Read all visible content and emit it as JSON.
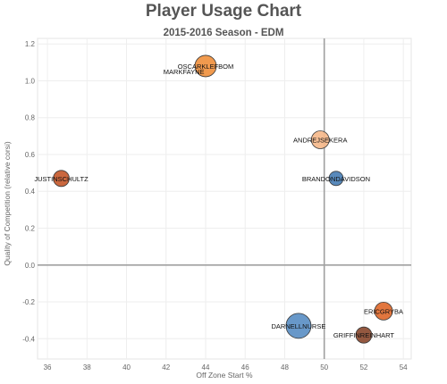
{
  "chart_data": {
    "type": "scatter",
    "title": "Player Usage Chart",
    "subtitle": "2015-2016 Season - EDM",
    "xlabel": "Off Zone Start %",
    "ylabel": "Quality of Competition (relative corsi)",
    "xlim": [
      35.5,
      54.4
    ],
    "ylim": [
      -0.51,
      1.23
    ],
    "xticks": [
      36,
      38,
      40,
      42,
      44,
      46,
      48,
      50,
      52,
      54
    ],
    "yticks": [
      -0.4,
      -0.2,
      0.0,
      0.2,
      0.4,
      0.6,
      0.8,
      1.0,
      1.2
    ],
    "ytick_labels": [
      "-0.4",
      "-0.2",
      "0.0",
      "0.2",
      "0.4",
      "0.6",
      "0.8",
      "1.0",
      "1.2"
    ],
    "reference_lines": {
      "x": 50,
      "y": 0
    },
    "grid": true,
    "points": [
      {
        "label": "OSCARKLEFBOM",
        "x": 44.0,
        "y": 1.08,
        "size": 12,
        "color": "#f0913f"
      },
      {
        "label": "MARKFAYNE",
        "x": 42.9,
        "y": 1.05,
        "size": 0,
        "color": "#555555"
      },
      {
        "label": "ANDREJSEKERA",
        "x": 49.8,
        "y": 0.68,
        "size": 10,
        "color": "#f5b98b"
      },
      {
        "label": "JUSTINSCHULTZ",
        "x": 36.7,
        "y": 0.47,
        "size": 9,
        "color": "#c65a2e"
      },
      {
        "label": "BRANDONDAVIDSON",
        "x": 50.6,
        "y": 0.47,
        "size": 8,
        "color": "#4a7fb5"
      },
      {
        "label": "ERICGRYBA",
        "x": 53.0,
        "y": -0.25,
        "size": 10,
        "color": "#e06a2e"
      },
      {
        "label": "DARNELLNURSE",
        "x": 48.7,
        "y": -0.33,
        "size": 14,
        "color": "#5b8fc4"
      },
      {
        "label": "GRIFFINREINHART",
        "x": 52.0,
        "y": -0.38,
        "size": 9,
        "color": "#8b4a30"
      }
    ]
  }
}
